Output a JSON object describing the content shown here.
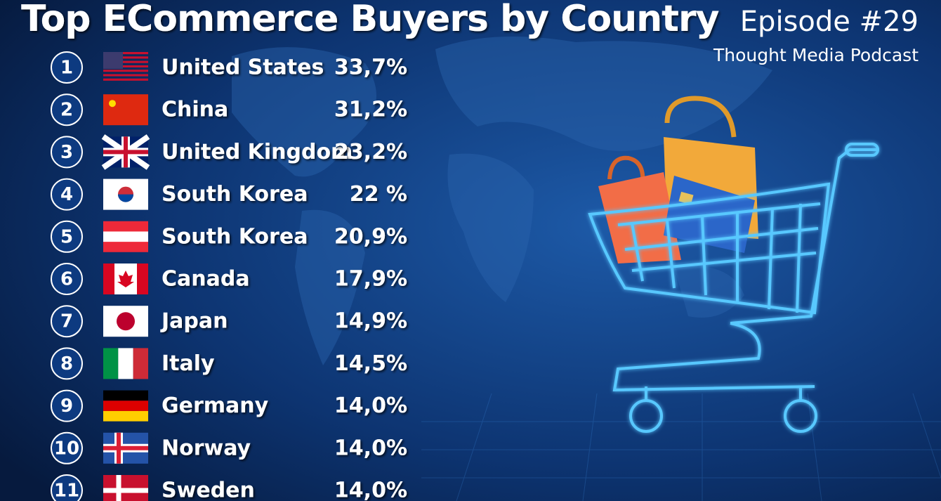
{
  "header": {
    "title": "Top ECommerce Buyers by Country",
    "episode": "Episode #29",
    "podcast": "Thought Media Podcast"
  },
  "rows": [
    {
      "rank": "1",
      "country": "United States",
      "value": "33,7%"
    },
    {
      "rank": "2",
      "country": "China",
      "value": "31,2%"
    },
    {
      "rank": "3",
      "country": "United Kingdom",
      "value": "23,2%"
    },
    {
      "rank": "4",
      "country": "South Korea",
      "value": "22 %"
    },
    {
      "rank": "5",
      "country": "South Korea",
      "value": "20,9%"
    },
    {
      "rank": "6",
      "country": "Canada",
      "value": "17,9%"
    },
    {
      "rank": "7",
      "country": "Japan",
      "value": "14,9%"
    },
    {
      "rank": "8",
      "country": "Italy",
      "value": "14,5%"
    },
    {
      "rank": "9",
      "country": "Germany",
      "value": "14,0%"
    },
    {
      "rank": "10",
      "country": "Norway",
      "value": "14,0%"
    },
    {
      "rank": "11",
      "country": "Sweden",
      "value": "14,0%"
    }
  ]
}
